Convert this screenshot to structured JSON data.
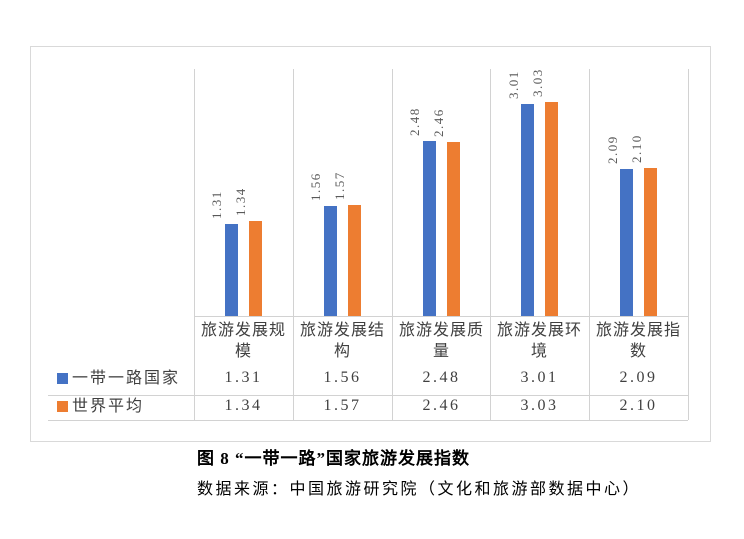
{
  "chart_data": {
    "type": "bar",
    "categories": [
      "旅游发展规模",
      "旅游发展结构",
      "旅游发展质量",
      "旅游发展环境",
      "旅游发展指数"
    ],
    "series": [
      {
        "name": "一带一路国家",
        "color": "#4472C4",
        "values": [
          1.31,
          1.56,
          2.48,
          3.01,
          2.09
        ],
        "value_labels": [
          "1.31",
          "1.56",
          "2.48",
          "3.01",
          "2.09"
        ]
      },
      {
        "name": "世界平均",
        "color": "#ED7D31",
        "values": [
          1.34,
          1.57,
          2.46,
          3.03,
          2.1
        ],
        "value_labels": [
          "1.34",
          "1.57",
          "2.46",
          "3.03",
          "2.10"
        ]
      }
    ],
    "ylim": [
      0,
      3.5
    ],
    "grid": false,
    "data_labels": true,
    "data_labels_rotated": true,
    "legend_position": "data-table-left",
    "data_table": true
  },
  "caption": {
    "title": "图 8  “一带一路”国家旅游发展指数",
    "source": "数据来源：中国旅游研究院（文化和旅游部数据中心）"
  },
  "colors": {
    "series1": "#4472C4",
    "series2": "#ED7D31",
    "gridline": "#D2D2D2",
    "border": "#D9D9D9",
    "chart_text": "#404040",
    "data_label_text": "#595959"
  }
}
